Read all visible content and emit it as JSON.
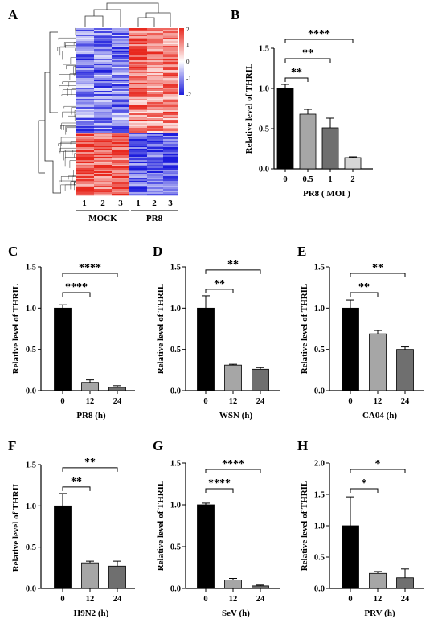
{
  "figure": {
    "panel_labels": [
      "A",
      "B",
      "C",
      "D",
      "E",
      "F",
      "G",
      "H"
    ]
  },
  "heatmap": {
    "panel": "A",
    "columns": [
      "1",
      "2",
      "3",
      "1",
      "2",
      "3"
    ],
    "groups": [
      "MOCK",
      "PR8"
    ],
    "colorbar": {
      "ticks": [
        "2",
        "1",
        "0",
        "-1",
        "-2"
      ],
      "high_color": "#e8291f",
      "mid_color": "#ffffff",
      "low_color": "#1d1ddc"
    }
  },
  "chart_data": [
    {
      "panel": "B",
      "type": "bar",
      "categories": [
        "0",
        "0.5",
        "1",
        "2"
      ],
      "values": [
        1.0,
        0.68,
        0.51,
        0.14
      ],
      "errors": [
        0.05,
        0.06,
        0.12,
        0.01
      ],
      "bar_colors": [
        "#000000",
        "#a6a6a6",
        "#6f6f6f",
        "#d6d6d6"
      ],
      "xlabel": "PR8 ( MOI )",
      "ylabel": "Relative  level of THRIL",
      "ylim": [
        0,
        1.5
      ],
      "yticks": [
        "0.0",
        "0.5",
        "1.0",
        "1.5"
      ],
      "significance": [
        {
          "from": 0,
          "to": 1,
          "label": "**"
        },
        {
          "from": 0,
          "to": 2,
          "label": "**"
        },
        {
          "from": 0,
          "to": 3,
          "label": "****"
        }
      ]
    },
    {
      "panel": "C",
      "type": "bar",
      "categories": [
        "0",
        "12",
        "24"
      ],
      "values": [
        1.0,
        0.1,
        0.04
      ],
      "errors": [
        0.04,
        0.03,
        0.02
      ],
      "bar_colors": [
        "#000000",
        "#a6a6a6",
        "#6f6f6f"
      ],
      "xlabel": "PR8 (h)",
      "ylabel": "Relative  level of THRIL",
      "ylim": [
        0,
        1.5
      ],
      "yticks": [
        "0.0",
        "0.5",
        "1.0",
        "1.5"
      ],
      "significance": [
        {
          "from": 0,
          "to": 1,
          "label": "****"
        },
        {
          "from": 0,
          "to": 2,
          "label": "****"
        }
      ]
    },
    {
      "panel": "D",
      "type": "bar",
      "categories": [
        "0",
        "12",
        "24"
      ],
      "values": [
        1.0,
        0.31,
        0.26
      ],
      "errors": [
        0.15,
        0.01,
        0.02
      ],
      "bar_colors": [
        "#000000",
        "#a6a6a6",
        "#6f6f6f"
      ],
      "xlabel": "WSN (h)",
      "ylabel": "Relative  level of THRIL",
      "ylim": [
        0,
        1.5
      ],
      "yticks": [
        "0.0",
        "0.5",
        "1.0",
        "1.5"
      ],
      "significance": [
        {
          "from": 0,
          "to": 1,
          "label": "**"
        },
        {
          "from": 0,
          "to": 2,
          "label": "**"
        }
      ]
    },
    {
      "panel": "E",
      "type": "bar",
      "categories": [
        "0",
        "12",
        "24"
      ],
      "values": [
        1.0,
        0.69,
        0.5
      ],
      "errors": [
        0.1,
        0.04,
        0.03
      ],
      "bar_colors": [
        "#000000",
        "#a6a6a6",
        "#6f6f6f"
      ],
      "xlabel": "CA04 (h)",
      "ylabel": "Relative  level of THRIL",
      "ylim": [
        0,
        1.5
      ],
      "yticks": [
        "0.0",
        "0.5",
        "1.0",
        "1.5"
      ],
      "significance": [
        {
          "from": 0,
          "to": 1,
          "label": "**"
        },
        {
          "from": 0,
          "to": 2,
          "label": "**"
        }
      ]
    },
    {
      "panel": "F",
      "type": "bar",
      "categories": [
        "0",
        "12",
        "24"
      ],
      "values": [
        1.0,
        0.31,
        0.27
      ],
      "errors": [
        0.15,
        0.02,
        0.06
      ],
      "bar_colors": [
        "#000000",
        "#a6a6a6",
        "#6f6f6f"
      ],
      "xlabel": "H9N2 (h)",
      "ylabel": "Relative  level of THRIL",
      "ylim": [
        0,
        1.5
      ],
      "yticks": [
        "0.0",
        "0.5",
        "1.0",
        "1.5"
      ],
      "significance": [
        {
          "from": 0,
          "to": 1,
          "label": "**"
        },
        {
          "from": 0,
          "to": 2,
          "label": "**"
        }
      ]
    },
    {
      "panel": "G",
      "type": "bar",
      "categories": [
        "0",
        "12",
        "24"
      ],
      "values": [
        1.0,
        0.1,
        0.03
      ],
      "errors": [
        0.02,
        0.02,
        0.01
      ],
      "bar_colors": [
        "#000000",
        "#a6a6a6",
        "#6f6f6f"
      ],
      "xlabel": "SeV (h)",
      "ylabel": "Relative  level of THRIL",
      "ylim": [
        0,
        1.5
      ],
      "yticks": [
        "0.0",
        "0.5",
        "1.0",
        "1.5"
      ],
      "significance": [
        {
          "from": 0,
          "to": 1,
          "label": "****"
        },
        {
          "from": 0,
          "to": 2,
          "label": "****"
        }
      ]
    },
    {
      "panel": "H",
      "type": "bar",
      "categories": [
        "0",
        "12",
        "24"
      ],
      "values": [
        1.0,
        0.24,
        0.17
      ],
      "errors": [
        0.46,
        0.03,
        0.14
      ],
      "bar_colors": [
        "#000000",
        "#a6a6a6",
        "#6f6f6f"
      ],
      "xlabel": "PRV (h)",
      "ylabel": "Relative  level of THRIL",
      "ylim": [
        0,
        2.0
      ],
      "yticks": [
        "0.0",
        "0.5",
        "1.0",
        "1.5",
        "2.0"
      ],
      "significance": [
        {
          "from": 0,
          "to": 1,
          "label": "*"
        },
        {
          "from": 0,
          "to": 2,
          "label": "*"
        }
      ]
    }
  ]
}
